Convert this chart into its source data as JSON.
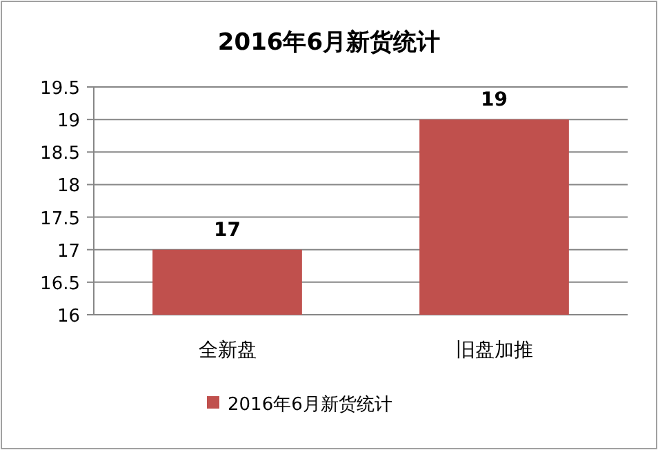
{
  "chart_data": {
    "type": "bar",
    "title": "2016年6月新货统计",
    "categories": [
      "全新盘",
      "旧盘加推"
    ],
    "series": [
      {
        "name": "2016年6月新货统计",
        "color": "#c0504d",
        "values": [
          17,
          19
        ]
      }
    ],
    "ylim": [
      16,
      19.5
    ],
    "yticks": [
      16,
      16.5,
      17,
      17.5,
      18,
      18.5,
      19,
      19.5
    ],
    "grid": "y",
    "legend": "bottom",
    "data_labels": true
  }
}
